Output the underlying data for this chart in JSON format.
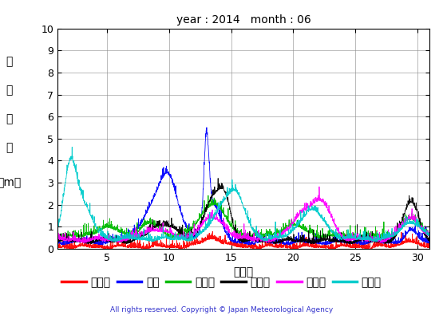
{
  "title": "year : 2014   month : 06",
  "xlabel": "（日）",
  "ylabel_chars": [
    "有",
    "義",
    "波",
    "高",
    "（m）"
  ],
  "xlim": [
    1,
    31
  ],
  "ylim": [
    0,
    10
  ],
  "xticks": [
    5,
    10,
    15,
    20,
    25,
    30
  ],
  "yticks": [
    0,
    1,
    2,
    3,
    4,
    5,
    6,
    7,
    8,
    9,
    10
  ],
  "legend": [
    "上ノ国",
    "唐桑",
    "石廊崎",
    "経ヶ岬",
    "生月島",
    "屋久島"
  ],
  "colors": [
    "#ff0000",
    "#0000ff",
    "#00bb00",
    "#000000",
    "#ff00ff",
    "#00cccc"
  ],
  "copyright": "All rights reserved. Copyright © Japan Meteorological Agency",
  "n_points": 2160
}
